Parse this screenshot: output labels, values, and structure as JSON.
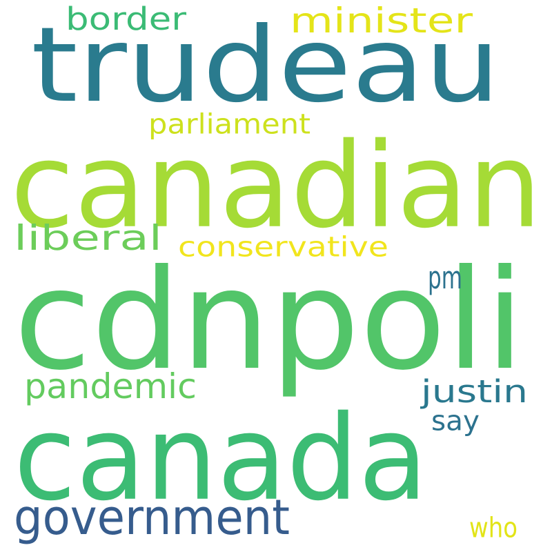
{
  "words": [
    {
      "text": "trudeau",
      "color": "#2a7b8e"
    },
    {
      "text": "canadian",
      "color": "#a5db36"
    },
    {
      "text": "cdnpoli",
      "color": "#52c569"
    },
    {
      "text": "canada",
      "color": "#3cbc74"
    },
    {
      "text": "government",
      "color": "#365c8d"
    },
    {
      "text": "minister",
      "color": "#e4e419"
    },
    {
      "text": "border",
      "color": "#3bbb75"
    },
    {
      "text": "parliament",
      "color": "#cde11d"
    },
    {
      "text": "liberal",
      "color": "#6ccd5a"
    },
    {
      "text": "conservative",
      "color": "#f1e51d"
    },
    {
      "text": "pm",
      "color": "#2c728e"
    },
    {
      "text": "pandemic",
      "color": "#63cb5f"
    },
    {
      "text": "justin",
      "color": "#2a788e"
    },
    {
      "text": "say",
      "color": "#2c728e"
    },
    {
      "text": "who",
      "color": "#e2e418"
    }
  ]
}
